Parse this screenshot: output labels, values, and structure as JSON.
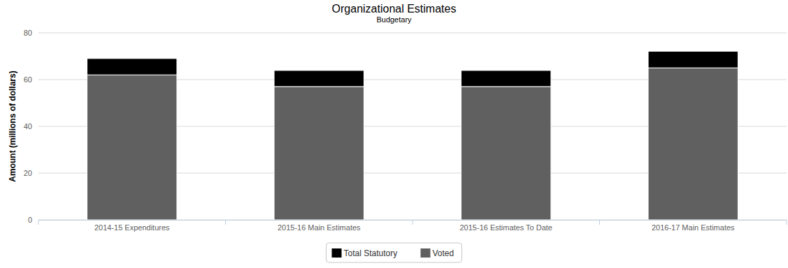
{
  "chart_data": {
    "type": "bar",
    "title": "Organizational Estimates",
    "subtitle": "Budgetary",
    "y_label": "Amount (millions of dollars)",
    "categories": [
      "2014-15 Expenditures",
      "2015-16 Main Estimates",
      "2015-16 Estimates To Date",
      "2016-17 Main Estimates"
    ],
    "series": [
      {
        "name": "Total Statutory",
        "color": "#000000",
        "values": [
          7,
          6.9,
          6.9,
          7.1
        ]
      },
      {
        "name": "Voted",
        "color": "#606060",
        "values": [
          62,
          57,
          57,
          65
        ]
      }
    ],
    "stacked": true,
    "ylim": [
      0,
      80
    ],
    "yticks": [
      0,
      20,
      40,
      60,
      80
    ],
    "grid": true,
    "legend": "bottom"
  }
}
